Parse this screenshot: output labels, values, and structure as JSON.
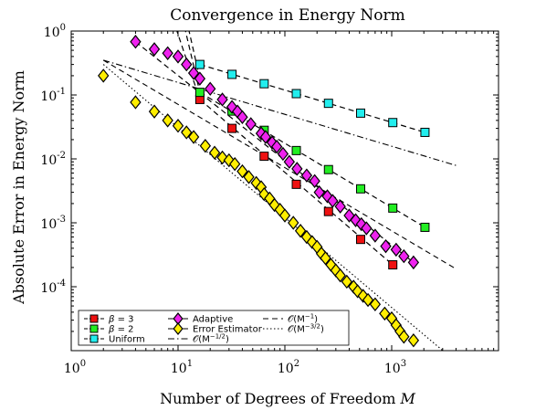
{
  "chart_data": {
    "type": "scatter",
    "title": "Convergence in Energy Norm",
    "xlabel": "Number of Degrees of Freedom M",
    "ylabel": "Absolute Error in Energy Norm",
    "xscale": "log",
    "yscale": "log",
    "xlim": [
      1,
      10000
    ],
    "ylim": [
      1e-05,
      1
    ],
    "grid": false,
    "legend_position": "bottom-left",
    "x_ticks": [
      {
        "base": "10",
        "exp": "0",
        "value": 1
      },
      {
        "base": "10",
        "exp": "1",
        "value": 10
      },
      {
        "base": "10",
        "exp": "2",
        "value": 100
      },
      {
        "base": "10",
        "exp": "3",
        "value": 1000
      }
    ],
    "y_ticks": [
      {
        "base": "10",
        "exp": "0",
        "value": 1
      },
      {
        "base": "10",
        "exp": "-1",
        "value": 0.1
      },
      {
        "base": "10",
        "exp": "-2",
        "value": 0.01
      },
      {
        "base": "10",
        "exp": "-3",
        "value": 0.001
      },
      {
        "base": "10",
        "exp": "-4",
        "value": 0.0001
      }
    ],
    "series": [
      {
        "name": "β = 3",
        "marker": "square",
        "color": "#ee1111",
        "points": [
          [
            16,
            0.085
          ],
          [
            32,
            0.03
          ],
          [
            64,
            0.011
          ],
          [
            128,
            0.004
          ],
          [
            256,
            0.0015
          ],
          [
            512,
            0.00055
          ],
          [
            1024,
            0.00022
          ]
        ]
      },
      {
        "name": "β = 2",
        "marker": "square",
        "color": "#22ee22",
        "points": [
          [
            16,
            0.11
          ],
          [
            32,
            0.056
          ],
          [
            64,
            0.028
          ],
          [
            128,
            0.0135
          ],
          [
            256,
            0.0068
          ],
          [
            512,
            0.0034
          ],
          [
            1024,
            0.0017
          ],
          [
            2048,
            0.00085
          ]
        ]
      },
      {
        "name": "Uniform",
        "marker": "square",
        "color": "#22eeee",
        "points": [
          [
            16,
            0.3
          ],
          [
            32,
            0.21
          ],
          [
            64,
            0.15
          ],
          [
            128,
            0.105
          ],
          [
            256,
            0.074
          ],
          [
            512,
            0.052
          ],
          [
            1024,
            0.037
          ],
          [
            2048,
            0.026
          ]
        ]
      },
      {
        "name": "Adaptive",
        "marker": "diamond",
        "color": "#ee22ee",
        "points": [
          [
            4,
            0.68
          ],
          [
            6,
            0.52
          ],
          [
            8,
            0.45
          ],
          [
            10,
            0.4
          ],
          [
            12,
            0.3
          ],
          [
            14,
            0.22
          ],
          [
            16,
            0.18
          ],
          [
            20,
            0.125
          ],
          [
            26,
            0.085
          ],
          [
            32,
            0.065
          ],
          [
            36,
            0.055
          ],
          [
            40,
            0.045
          ],
          [
            48,
            0.035
          ],
          [
            60,
            0.025
          ],
          [
            66,
            0.022
          ],
          [
            76,
            0.018
          ],
          [
            84,
            0.0155
          ],
          [
            96,
            0.012
          ],
          [
            110,
            0.009
          ],
          [
            130,
            0.007
          ],
          [
            160,
            0.0055
          ],
          [
            190,
            0.0045
          ],
          [
            210,
            0.003
          ],
          [
            250,
            0.0026
          ],
          [
            280,
            0.0022
          ],
          [
            330,
            0.0018
          ],
          [
            400,
            0.0013
          ],
          [
            460,
            0.0011
          ],
          [
            520,
            0.00095
          ],
          [
            580,
            0.00082
          ],
          [
            700,
            0.00063
          ],
          [
            880,
            0.00043
          ],
          [
            1100,
            0.00038
          ],
          [
            1300,
            0.0003
          ],
          [
            1600,
            0.00024
          ]
        ]
      },
      {
        "name": "Error Estimator",
        "marker": "diamond",
        "color": "#ffee00",
        "points": [
          [
            2,
            0.2
          ],
          [
            4,
            0.077
          ],
          [
            6,
            0.055
          ],
          [
            8,
            0.04
          ],
          [
            10,
            0.033
          ],
          [
            12,
            0.026
          ],
          [
            14,
            0.022
          ],
          [
            18,
            0.016
          ],
          [
            22,
            0.0125
          ],
          [
            26,
            0.0105
          ],
          [
            30,
            0.0095
          ],
          [
            34,
            0.0083
          ],
          [
            40,
            0.0064
          ],
          [
            46,
            0.0052
          ],
          [
            54,
            0.0042
          ],
          [
            60,
            0.0036
          ],
          [
            64,
            0.0028
          ],
          [
            72,
            0.0024
          ],
          [
            80,
            0.0019
          ],
          [
            90,
            0.0016
          ],
          [
            100,
            0.0013
          ],
          [
            120,
            0.001
          ],
          [
            140,
            0.00075
          ],
          [
            160,
            0.0006
          ],
          [
            180,
            0.0005
          ],
          [
            200,
            0.00042
          ],
          [
            220,
            0.00033
          ],
          [
            240,
            0.00028
          ],
          [
            270,
            0.00022
          ],
          [
            300,
            0.00018
          ],
          [
            330,
            0.00015
          ],
          [
            380,
            0.00012
          ],
          [
            440,
            0.0001
          ],
          [
            480,
            8.5e-05
          ],
          [
            540,
            7.2e-05
          ],
          [
            600,
            6.2e-05
          ],
          [
            700,
            5.3e-05
          ],
          [
            860,
            3.8e-05
          ],
          [
            1000,
            3.2e-05
          ],
          [
            1100,
            2.5e-05
          ],
          [
            1200,
            2e-05
          ],
          [
            1300,
            1.65e-05
          ],
          [
            1600,
            1.45e-05
          ]
        ]
      }
    ],
    "lines": [
      {
        "name": "O(M^{-1})",
        "label_base": "𝒪(M",
        "label_exp": "−1",
        "label_close": ")",
        "style": "dashed",
        "points": [
          [
            2,
            0.35
          ],
          [
            4000,
            0.00019
          ]
        ]
      },
      {
        "name": "O(M^{-3/2})",
        "label_base": "𝒪(M",
        "label_exp": "−3/2",
        "label_close": ")",
        "style": "dotted",
        "points": [
          [
            2,
            0.3
          ],
          [
            4000,
            6.7e-06
          ]
        ]
      },
      {
        "name": "O(M^{-1/2})",
        "label_base": "𝒪(M",
        "label_exp": "−1/2",
        "label_close": ")",
        "style": "dashdot",
        "points": [
          [
            2,
            0.35
          ],
          [
            4000,
            0.0079
          ]
        ]
      }
    ],
    "fit_lines": [
      {
        "style": "dashed",
        "points": [
          [
            4,
            0.68
          ],
          [
            1600,
            0.00024
          ]
        ]
      },
      {
        "style": "dashed",
        "points": [
          [
            16,
            0.3
          ],
          [
            2048,
            0.026
          ]
        ]
      },
      {
        "style": "dashed",
        "points": [
          [
            16,
            0.11
          ],
          [
            2048,
            0.00085
          ]
        ]
      },
      {
        "style": "dashed",
        "points": [
          [
            16,
            0.085
          ],
          [
            1024,
            0.00022
          ]
        ]
      },
      {
        "style": "dashed",
        "points": [
          [
            12,
            1.5
          ],
          [
            16,
            0.18
          ]
        ]
      },
      {
        "style": "dashed",
        "points": [
          [
            9,
            1.5
          ],
          [
            16,
            0.085
          ]
        ]
      },
      {
        "style": "dashed",
        "points": [
          [
            11,
            1.6
          ],
          [
            16,
            0.11
          ]
        ]
      }
    ]
  }
}
